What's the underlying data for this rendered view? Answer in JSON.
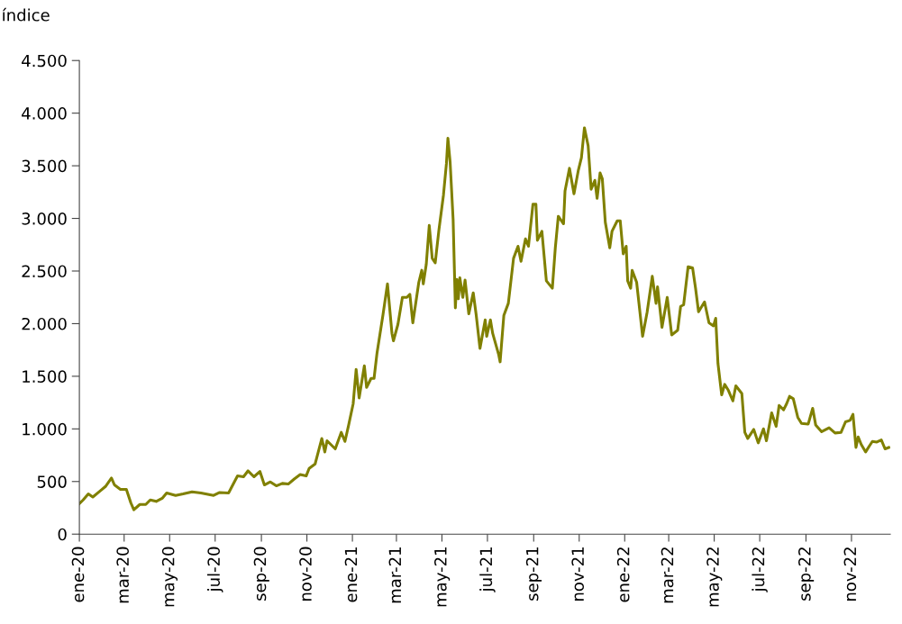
{
  "chart_data": {
    "type": "line",
    "ylabel": "índice",
    "color": "#808000",
    "grid": false,
    "legend": false,
    "marker": "none",
    "line_style": "solid",
    "x": [
      "2020-01-01",
      "2020-01-06",
      "2020-01-13",
      "2020-01-19",
      "2020-01-29",
      "2020-02-05",
      "2020-02-13",
      "2020-02-17",
      "2020-02-25",
      "2020-03-04",
      "2020-03-10",
      "2020-03-14",
      "2020-03-22",
      "2020-03-30",
      "2020-04-05",
      "2020-04-13",
      "2020-04-21",
      "2020-04-27",
      "2020-05-09",
      "2020-05-19",
      "2020-05-31",
      "2020-06-12",
      "2020-06-29",
      "2020-07-07",
      "2020-07-19",
      "2020-07-31",
      "2020-08-08",
      "2020-08-14",
      "2020-08-22",
      "2020-08-30",
      "2020-09-05",
      "2020-09-13",
      "2020-09-21",
      "2020-09-29",
      "2020-10-07",
      "2020-10-15",
      "2020-10-23",
      "2020-10-31",
      "2020-11-04",
      "2020-11-12",
      "2020-11-21",
      "2020-11-25",
      "2020-11-28",
      "2020-12-09",
      "2020-12-17",
      "2020-12-22",
      "2020-12-27",
      "2021-01-02",
      "2021-01-06",
      "2021-01-10",
      "2021-01-17",
      "2021-01-20",
      "2021-01-26",
      "2021-01-30",
      "2021-02-03",
      "2021-02-11",
      "2021-02-17",
      "2021-02-23",
      "2021-02-25",
      "2021-03-03",
      "2021-03-09",
      "2021-03-15",
      "2021-03-19",
      "2021-03-23",
      "2021-03-31",
      "2021-04-04",
      "2021-04-06",
      "2021-04-10",
      "2021-04-14",
      "2021-04-18",
      "2021-04-22",
      "2021-04-27",
      "2021-05-03",
      "2021-05-07",
      "2021-05-09",
      "2021-05-12",
      "2021-05-16",
      "2021-05-19",
      "2021-05-21",
      "2021-05-23",
      "2021-05-25",
      "2021-05-29",
      "2021-06-01",
      "2021-06-06",
      "2021-06-12",
      "2021-06-16",
      "2021-06-21",
      "2021-06-28",
      "2021-06-30",
      "2021-07-05",
      "2021-07-08",
      "2021-07-16",
      "2021-07-18",
      "2021-07-23",
      "2021-07-29",
      "2021-08-05",
      "2021-08-11",
      "2021-08-15",
      "2021-08-21",
      "2021-08-25",
      "2021-08-31",
      "2021-09-04",
      "2021-09-06",
      "2021-09-12",
      "2021-09-18",
      "2021-09-26",
      "2021-09-30",
      "2021-10-04",
      "2021-10-11",
      "2021-10-13",
      "2021-10-19",
      "2021-10-25",
      "2021-10-31",
      "2021-11-04",
      "2021-11-08",
      "2021-11-13",
      "2021-11-17",
      "2021-11-22",
      "2021-11-25",
      "2021-11-29",
      "2021-12-02",
      "2021-12-06",
      "2021-12-12",
      "2021-12-15",
      "2021-12-22",
      "2021-12-26",
      "2021-12-30",
      "2022-01-03",
      "2022-01-05",
      "2022-01-09",
      "2022-01-11",
      "2022-01-17",
      "2022-01-25",
      "2022-01-31",
      "2022-02-07",
      "2022-02-12",
      "2022-02-14",
      "2022-02-20",
      "2022-02-27",
      "2022-03-05",
      "2022-03-13",
      "2022-03-17",
      "2022-03-21",
      "2022-03-27",
      "2022-04-02",
      "2022-04-06",
      "2022-04-10",
      "2022-04-18",
      "2022-04-24",
      "2022-04-30",
      "2022-05-03",
      "2022-05-06",
      "2022-05-11",
      "2022-05-15",
      "2022-05-20",
      "2022-05-26",
      "2022-05-30",
      "2022-06-07",
      "2022-06-11",
      "2022-06-15",
      "2022-06-23",
      "2022-06-29",
      "2022-07-06",
      "2022-07-10",
      "2022-07-17",
      "2022-07-23",
      "2022-07-27",
      "2022-08-02",
      "2022-08-06",
      "2022-08-10",
      "2022-08-15",
      "2022-08-21",
      "2022-08-26",
      "2022-09-04",
      "2022-09-10",
      "2022-09-14",
      "2022-09-22",
      "2022-10-02",
      "2022-10-10",
      "2022-10-18",
      "2022-10-24",
      "2022-10-30",
      "2022-11-03",
      "2022-11-07",
      "2022-11-10",
      "2022-11-14",
      "2022-11-20",
      "2022-11-25",
      "2022-11-29",
      "2022-12-05",
      "2022-12-11",
      "2022-12-16",
      "2022-12-21"
    ],
    "values": [
      290,
      325,
      382,
      353,
      411,
      453,
      533,
      468,
      425,
      425,
      297,
      231,
      282,
      282,
      325,
      311,
      340,
      391,
      368,
      382,
      402,
      391,
      368,
      396,
      391,
      553,
      545,
      601,
      545,
      596,
      468,
      496,
      459,
      482,
      476,
      524,
      567,
      553,
      624,
      667,
      909,
      781,
      887,
      810,
      967,
      881,
      1038,
      1238,
      1566,
      1294,
      1600,
      1394,
      1480,
      1480,
      1722,
      2085,
      2378,
      1908,
      1837,
      1993,
      2250,
      2250,
      2278,
      2008,
      2393,
      2507,
      2378,
      2564,
      2934,
      2621,
      2578,
      2892,
      3219,
      3519,
      3762,
      3533,
      2992,
      2150,
      2421,
      2236,
      2436,
      2250,
      2415,
      2093,
      2293,
      2079,
      1765,
      2036,
      1879,
      2036,
      1908,
      1708,
      1637,
      2079,
      2193,
      2621,
      2735,
      2592,
      2806,
      2735,
      3134,
      3134,
      2792,
      2878,
      2407,
      2336,
      2721,
      3020,
      2949,
      3262,
      3476,
      3234,
      3462,
      3576,
      3861,
      3690,
      3277,
      3362,
      3191,
      3433,
      3376,
      2963,
      2721,
      2878,
      2977,
      2977,
      2663,
      2735,
      2407,
      2336,
      2507,
      2393,
      1879,
      2107,
      2450,
      2193,
      2350,
      1965,
      2250,
      1893,
      1937,
      2164,
      2179,
      2541,
      2530,
      2336,
      2113,
      2207,
      2008,
      1979,
      2051,
      1623,
      1323,
      1423,
      1366,
      1266,
      1409,
      1337,
      967,
      909,
      995,
      867,
      1001,
      887,
      1152,
      1024,
      1223,
      1181,
      1238,
      1309,
      1286,
      1110,
      1052,
      1046,
      1195,
      1038,
      973,
      1010,
      961,
      967,
      1067,
      1081,
      1138,
      824,
      924,
      853,
      781,
      838,
      881,
      875,
      895,
      810,
      824
    ],
    "xlim": [
      "2020-01-01",
      "2022-12-23"
    ],
    "xticks": [
      {
        "value": "2020-01-01",
        "label": "ene-20"
      },
      {
        "value": "2020-03-01",
        "label": "mar-20"
      },
      {
        "value": "2020-05-01",
        "label": "may-20"
      },
      {
        "value": "2020-07-01",
        "label": "jul-20"
      },
      {
        "value": "2020-09-01",
        "label": "sep-20"
      },
      {
        "value": "2020-11-01",
        "label": "nov-20"
      },
      {
        "value": "2021-01-01",
        "label": "ene-21"
      },
      {
        "value": "2021-03-01",
        "label": "mar-21"
      },
      {
        "value": "2021-05-01",
        "label": "may-21"
      },
      {
        "value": "2021-07-01",
        "label": "jul-21"
      },
      {
        "value": "2021-09-01",
        "label": "sep-21"
      },
      {
        "value": "2021-11-01",
        "label": "nov-21"
      },
      {
        "value": "2022-01-01",
        "label": "ene-22"
      },
      {
        "value": "2022-03-01",
        "label": "mar-22"
      },
      {
        "value": "2022-05-01",
        "label": "may-22"
      },
      {
        "value": "2022-07-01",
        "label": "jul-22"
      },
      {
        "value": "2022-09-01",
        "label": "sep-22"
      },
      {
        "value": "2022-11-01",
        "label": "nov-22"
      }
    ],
    "ylim": [
      0,
      4500
    ],
    "yticks": [
      0,
      500,
      {
        "value": 1000,
        "label": "1.000"
      },
      {
        "value": 1500,
        "label": "1.500"
      },
      {
        "value": 2000,
        "label": "2.000"
      },
      {
        "value": 2500,
        "label": "2.500"
      },
      {
        "value": 3000,
        "label": "3.000"
      },
      {
        "value": 3500,
        "label": "3.500"
      },
      {
        "value": 4000,
        "label": "4.000"
      },
      {
        "value": 4500,
        "label": "4.500"
      }
    ]
  }
}
